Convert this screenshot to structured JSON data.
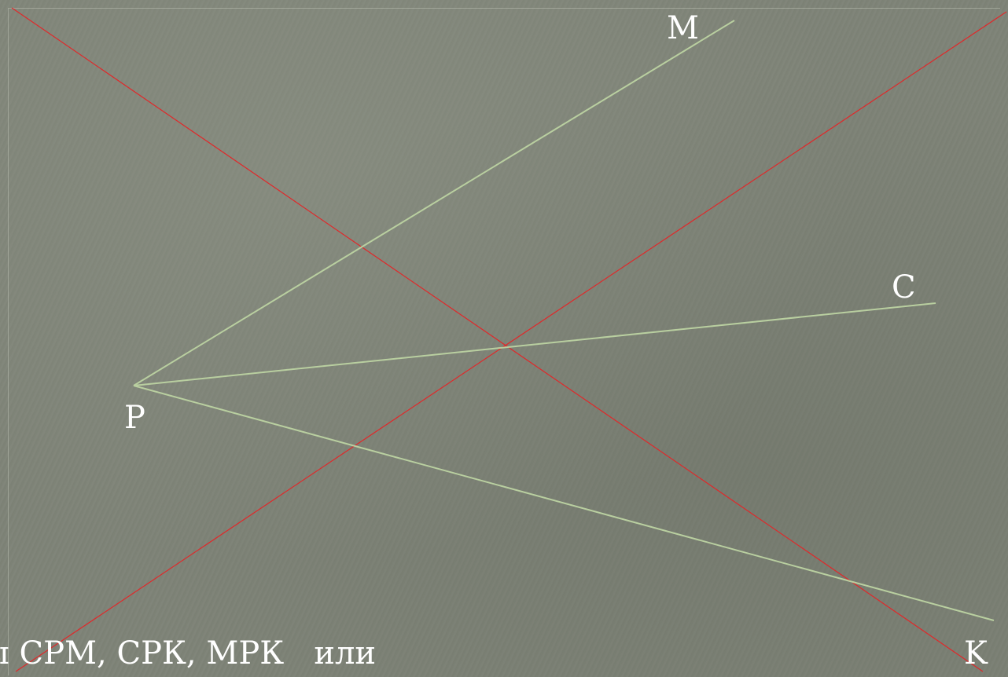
{
  "points": {
    "M": "M",
    "C": "C",
    "P": "P",
    "K": "K"
  },
  "caption": "ы СРМ, СРК, МРК   или",
  "colors": {
    "background": "#7e8377",
    "ray": "#b9cfa0",
    "cross": "#e0282a",
    "text": "#ffffff"
  }
}
